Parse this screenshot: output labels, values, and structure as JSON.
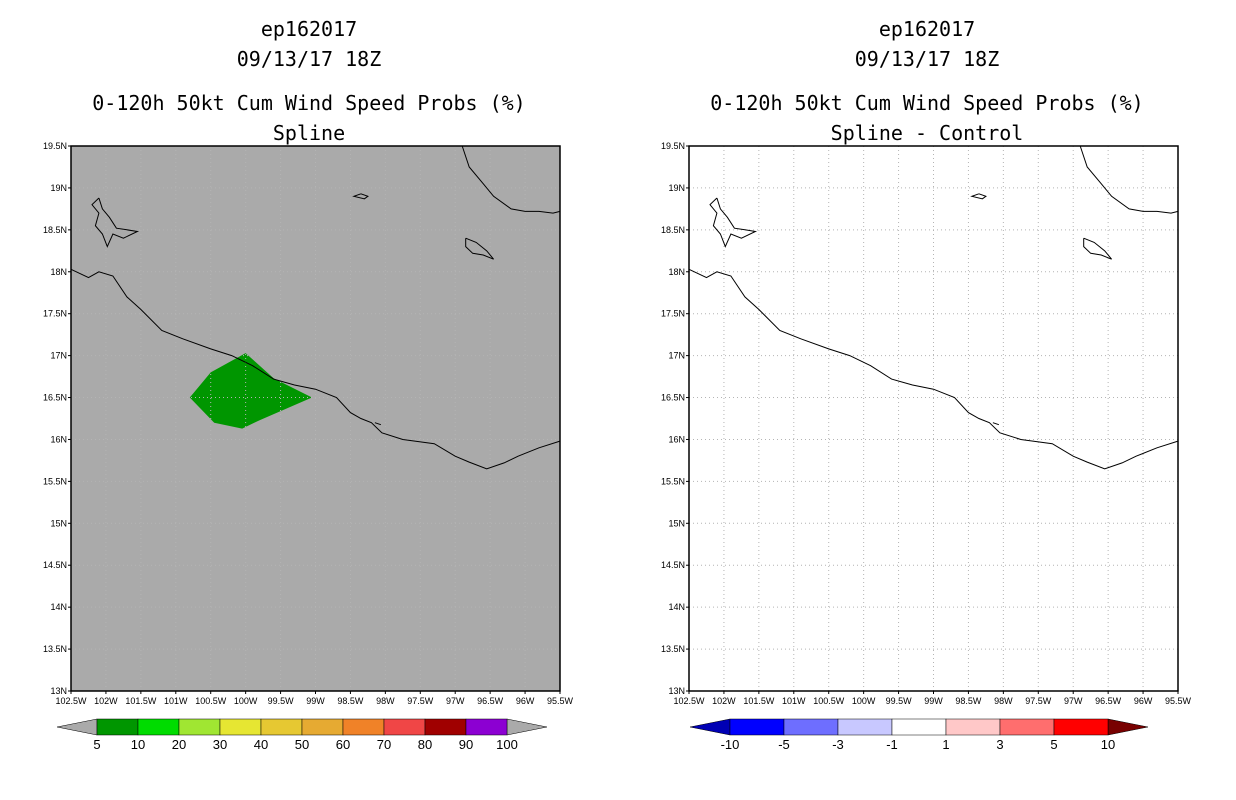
{
  "chart_data": [
    {
      "type": "map",
      "panel": "left",
      "title_lines": [
        "ep162017",
        "09/13/17 18Z",
        "0-120h 50kt Cum Wind Speed Probs (%)",
        "Spline"
      ],
      "lon_range": [
        -102.5,
        -95.5
      ],
      "lat_range": [
        13,
        19.5
      ],
      "lon_ticks": [
        "102.5W",
        "102W",
        "101.5W",
        "101W",
        "100.5W",
        "100W",
        "99.5W",
        "99W",
        "98.5W",
        "98W",
        "97.5W",
        "97W",
        "96.5W",
        "96W",
        "95.5W"
      ],
      "lat_ticks": [
        "13N",
        "13.5N",
        "14N",
        "14.5N",
        "15N",
        "15.5N",
        "16N",
        "16.5N",
        "17N",
        "17.5N",
        "18N",
        "18.5N",
        "19N",
        "19.5N"
      ],
      "background_color": "#aaaaaa",
      "probability_regions": [
        {
          "level": "5-10",
          "color": "#009600",
          "polygon": [
            [
              -100,
              17.03
            ],
            [
              -99.6,
              16.73
            ],
            [
              -99.05,
              16.5
            ],
            [
              -99.8,
              16.23
            ],
            [
              -100.05,
              16.13
            ],
            [
              -100.45,
              16.2
            ],
            [
              -100.8,
              16.5
            ],
            [
              -100.5,
              16.8
            ]
          ]
        }
      ],
      "colorbar": {
        "labels": [
          "5",
          "10",
          "20",
          "30",
          "40",
          "50",
          "60",
          "70",
          "80",
          "90",
          "100"
        ],
        "colors": [
          "#009600",
          "#00dc00",
          "#a0e632",
          "#e6e632",
          "#e6c832",
          "#e6aa32",
          "#f08228",
          "#f04646",
          "#a00000",
          "#8c00d2"
        ],
        "under_color": "#aaaaaa",
        "over_color": "#aaaaaa"
      }
    },
    {
      "type": "map",
      "panel": "right",
      "title_lines": [
        "ep162017",
        "09/13/17 18Z",
        "0-120h 50kt Cum Wind Speed Probs (%)",
        "Spline - Control"
      ],
      "lon_range": [
        -102.5,
        -95.5
      ],
      "lat_range": [
        13,
        19.5
      ],
      "lon_ticks": [
        "102.5W",
        "102W",
        "101.5W",
        "101W",
        "100.5W",
        "100W",
        "99.5W",
        "99W",
        "98.5W",
        "98W",
        "97.5W",
        "97W",
        "96.5W",
        "96W",
        "95.5W"
      ],
      "lat_ticks": [
        "13N",
        "13.5N",
        "14N",
        "14.5N",
        "15N",
        "15.5N",
        "16N",
        "16.5N",
        "17N",
        "17.5N",
        "18N",
        "18.5N",
        "19N",
        "19.5N"
      ],
      "background_color": "#ffffff",
      "probability_regions": [],
      "colorbar": {
        "labels": [
          "-10",
          "-5",
          "-3",
          "-1",
          "1",
          "3",
          "5",
          "10"
        ],
        "colors": [
          "#0000ff",
          "#6e6eff",
          "#c8c8ff",
          "#ffffff",
          "#ffc8c8",
          "#ff6e6e",
          "#ff0000"
        ],
        "under_color": "#0000b4",
        "over_color": "#780000"
      }
    }
  ],
  "coastline": [
    [
      -102.5,
      18.03
    ],
    [
      -102.25,
      17.93
    ],
    [
      -102.1,
      18.0
    ],
    [
      -101.9,
      17.95
    ],
    [
      -101.7,
      17.7
    ],
    [
      -101.5,
      17.55
    ],
    [
      -101.2,
      17.3
    ],
    [
      -100.9,
      17.2
    ],
    [
      -100.5,
      17.08
    ],
    [
      -100.2,
      17.0
    ],
    [
      -99.9,
      16.88
    ],
    [
      -99.6,
      16.72
    ],
    [
      -99.3,
      16.65
    ],
    [
      -99.0,
      16.6
    ],
    [
      -98.7,
      16.5
    ],
    [
      -98.5,
      16.32
    ],
    [
      -98.35,
      16.25
    ],
    [
      -98.2,
      16.2
    ],
    [
      -98.05,
      16.08
    ],
    [
      -97.75,
      16.0
    ],
    [
      -97.3,
      15.95
    ],
    [
      -97.0,
      15.8
    ],
    [
      -96.8,
      15.73
    ],
    [
      -96.55,
      15.65
    ],
    [
      -96.3,
      15.72
    ],
    [
      -96.1,
      15.8
    ],
    [
      -95.8,
      15.9
    ],
    [
      -95.5,
      15.98
    ]
  ],
  "inland_lines": [
    [
      [
        -96.9,
        19.5
      ],
      [
        -96.8,
        19.25
      ],
      [
        -96.6,
        19.05
      ],
      [
        -96.45,
        18.9
      ],
      [
        -96.2,
        18.75
      ],
      [
        -96.0,
        18.72
      ],
      [
        -95.8,
        18.72
      ],
      [
        -95.6,
        18.7
      ],
      [
        -95.5,
        18.72
      ]
    ],
    [
      [
        -102.1,
        18.88
      ],
      [
        -102.05,
        18.75
      ],
      [
        -101.95,
        18.65
      ],
      [
        -101.85,
        18.52
      ],
      [
        -101.7,
        18.5
      ],
      [
        -101.55,
        18.48
      ],
      [
        -101.75,
        18.4
      ],
      [
        -101.9,
        18.45
      ],
      [
        -101.98,
        18.3
      ],
      [
        -102.05,
        18.45
      ],
      [
        -102.15,
        18.55
      ],
      [
        -102.1,
        18.7
      ],
      [
        -102.2,
        18.8
      ],
      [
        -102.1,
        18.88
      ]
    ],
    [
      [
        -98.35,
        18.93
      ],
      [
        -98.25,
        18.9
      ],
      [
        -98.3,
        18.87
      ],
      [
        -98.45,
        18.9
      ],
      [
        -98.35,
        18.93
      ]
    ],
    [
      [
        -96.85,
        18.4
      ],
      [
        -96.7,
        18.35
      ],
      [
        -96.55,
        18.25
      ],
      [
        -96.45,
        18.15
      ],
      [
        -96.6,
        18.2
      ],
      [
        -96.75,
        18.22
      ],
      [
        -96.85,
        18.3
      ],
      [
        -96.85,
        18.4
      ]
    ]
  ]
}
